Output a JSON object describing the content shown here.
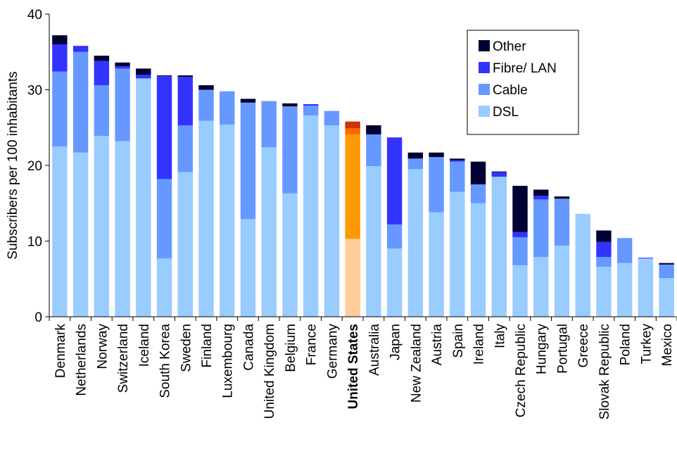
{
  "chart_data": {
    "type": "bar",
    "stacked": true,
    "title": "",
    "xlabel": "",
    "ylabel": "Subscribers per 100 inhabitants",
    "ylim": [
      0,
      40
    ],
    "yticks": [
      0,
      10,
      20,
      30,
      40
    ],
    "grid": false,
    "legend_position": "top-right",
    "highlight_category": "United States",
    "categories": [
      "Denmark",
      "Netherlands",
      "Norway",
      "Switzerland",
      "Iceland",
      "South Korea",
      "Sweden",
      "Finland",
      "Luxembourg",
      "Canada",
      "United Kingdom",
      "Belgium",
      "France",
      "Germany",
      "United States",
      "Australia",
      "Japan",
      "New Zealand",
      "Austria",
      "Spain",
      "Ireland",
      "Italy",
      "Czech Republic",
      "Hungary",
      "Portugal",
      "Greece",
      "Slovak Republic",
      "Poland",
      "Turkey",
      "Mexico"
    ],
    "series": [
      {
        "name": "DSL",
        "color": "#99ccff",
        "highlight_color": "#ffcc99",
        "values": [
          22.5,
          21.7,
          23.9,
          23.2,
          31.5,
          7.7,
          19.1,
          25.9,
          25.4,
          12.9,
          22.4,
          16.3,
          26.6,
          25.3,
          10.3,
          19.9,
          9.0,
          19.5,
          13.8,
          16.5,
          15.0,
          18.5,
          6.8,
          7.9,
          9.4,
          13.6,
          6.6,
          7.1,
          7.7,
          5.1
        ]
      },
      {
        "name": "Cable",
        "color": "#6699ff",
        "highlight_color": "#ff9900",
        "values": [
          9.9,
          13.3,
          6.7,
          9.6,
          0.0,
          10.5,
          6.2,
          4.1,
          4.4,
          15.4,
          6.1,
          11.5,
          1.3,
          1.9,
          13.8,
          4.2,
          3.2,
          1.4,
          7.3,
          4.0,
          2.5,
          0.0,
          3.7,
          7.6,
          6.2,
          0.0,
          1.3,
          3.3,
          0.0,
          1.8
        ]
      },
      {
        "name": "Fibre/ LAN",
        "color": "#3333ff",
        "highlight_color": "#ff6600",
        "values": [
          3.6,
          0.8,
          3.2,
          0.3,
          0.5,
          13.6,
          6.4,
          0.0,
          0.0,
          0.0,
          0.0,
          0.0,
          0.2,
          0.0,
          0.8,
          0.0,
          11.5,
          0.0,
          0.0,
          0.2,
          0.0,
          0.6,
          0.7,
          0.5,
          0.0,
          0.0,
          2.0,
          0.0,
          0.1,
          0.0
        ]
      },
      {
        "name": "Other",
        "color": "#000033",
        "highlight_color": "#cc3300",
        "values": [
          1.2,
          0.0,
          0.7,
          0.5,
          0.8,
          0.1,
          0.2,
          0.6,
          0.0,
          0.5,
          0.0,
          0.4,
          0.0,
          0.0,
          0.9,
          1.2,
          0.0,
          0.8,
          0.6,
          0.2,
          3.0,
          0.1,
          6.1,
          0.8,
          0.3,
          0.0,
          1.5,
          0.0,
          0.0,
          0.2
        ]
      }
    ]
  }
}
